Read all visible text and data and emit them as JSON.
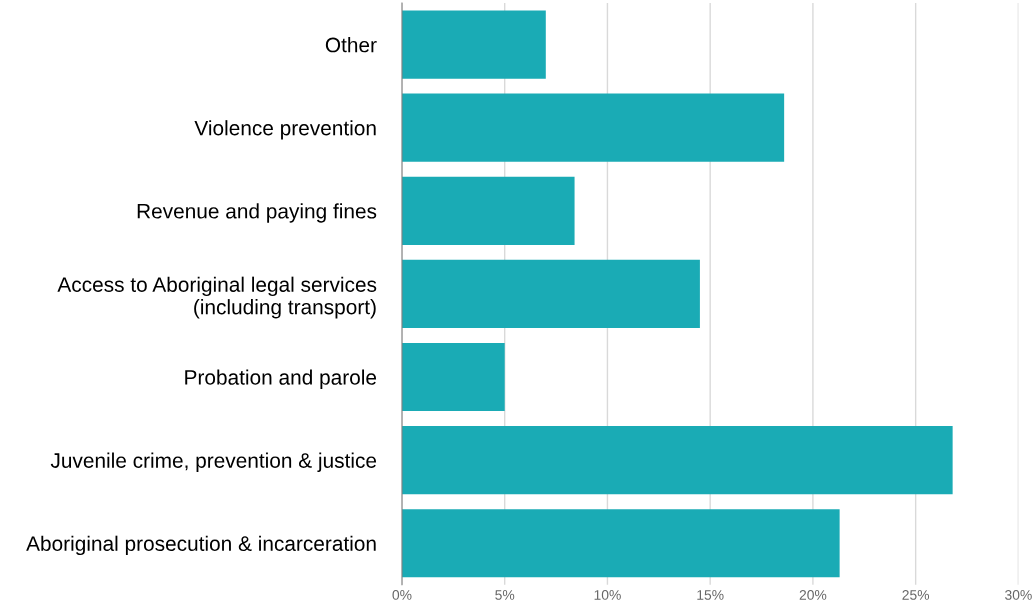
{
  "chart_data": {
    "type": "bar",
    "orientation": "horizontal",
    "categories": [
      "Other",
      "Violence prevention",
      "Revenue and paying fines",
      "Access to Aboriginal legal services\n(including transport)",
      "Probation and parole",
      "Juvenile crime, prevention & justice",
      "Aboriginal prosecution & incarceration"
    ],
    "values": [
      7.0,
      18.6,
      8.4,
      14.5,
      5.0,
      26.8,
      21.3
    ],
    "color": "#1aabb5",
    "xlim": [
      0,
      30
    ],
    "xticks": [
      {
        "value": 0,
        "label": "0%"
      },
      {
        "value": 5,
        "label": "5%"
      },
      {
        "value": 10,
        "label": "10%"
      },
      {
        "value": 15,
        "label": "15%"
      },
      {
        "value": 20,
        "label": "20%"
      },
      {
        "value": 25,
        "label": "25%"
      },
      {
        "value": 30,
        "label": "30%"
      }
    ],
    "grid": "x"
  }
}
